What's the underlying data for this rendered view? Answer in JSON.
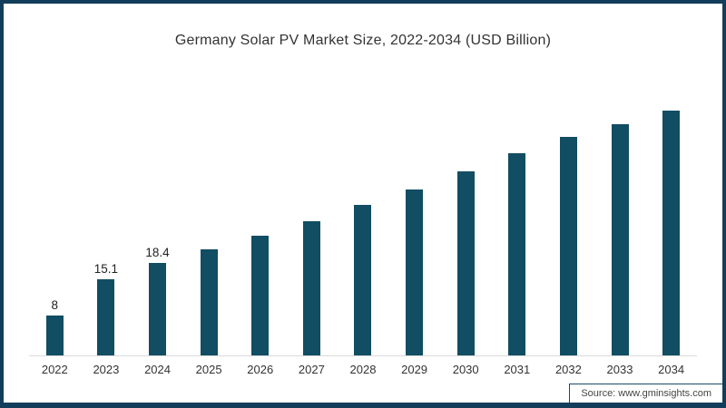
{
  "page": {
    "frame_color": "#123E5C",
    "background": "#ffffff"
  },
  "chart_data": {
    "type": "bar",
    "title": "Germany Solar PV Market Size, 2022-2034 (USD Billion)",
    "categories": [
      "2022",
      "2023",
      "2024",
      "2025",
      "2026",
      "2027",
      "2028",
      "2029",
      "2030",
      "2031",
      "2032",
      "2033",
      "2034"
    ],
    "values": [
      8,
      15.1,
      18.4,
      21,
      23.8,
      26.6,
      29.8,
      33,
      36.6,
      40.1,
      43.4,
      45.9,
      48.5
    ],
    "data_labels": [
      "8",
      "15.1",
      "18.4",
      "",
      "",
      "",
      "",
      "",
      "",
      "",
      "",
      "",
      ""
    ],
    "bar_color": "#114D63",
    "xlabel": "",
    "ylabel": "",
    "ylim": [
      0,
      52
    ],
    "grid": false,
    "legend": false,
    "axis_line_color": "#d9d9d9"
  },
  "source": {
    "label": "Source: www.gminsights.com"
  }
}
